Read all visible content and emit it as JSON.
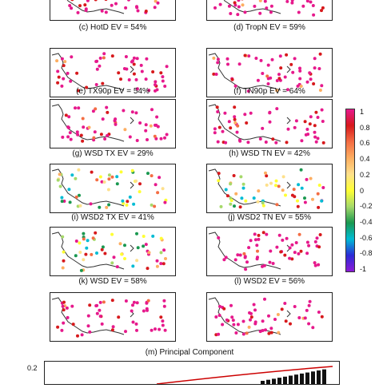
{
  "panels": [
    {
      "id": "top-left-partial"
    },
    {
      "id": "top-right-partial"
    },
    {
      "id": "c",
      "label": "(c) HotD  EV = 54%"
    },
    {
      "id": "d",
      "label": "(d) TropN  EV = 59%"
    },
    {
      "id": "e",
      "label": "(e) TX90p  EV = 54%"
    },
    {
      "id": "f",
      "label": "(f) TN90p  EV = 64%"
    },
    {
      "id": "g",
      "label": "(g) WSD TX  EV = 29%"
    },
    {
      "id": "h",
      "label": "(h) WSD TN  EV = 42%"
    },
    {
      "id": "i",
      "label": "(i) WSD2 TX  EV = 41%"
    },
    {
      "id": "j",
      "label": "(j) WSD2 TN  EV = 55%"
    },
    {
      "id": "k",
      "label": "(k) WSD     EV = 58%"
    },
    {
      "id": "l",
      "label": "(l) WSD2    EV = 56%"
    }
  ],
  "colorbar": {
    "ticks": [
      "1",
      "0.8",
      "0.6",
      "0.4",
      "0.2",
      "0",
      "-0.2",
      "-0.4",
      "-0.6",
      "-0.8",
      "-1"
    ],
    "colors": [
      "#e6198c",
      "#d7191c",
      "#f46d43",
      "#fdae61",
      "#fee08b",
      "#ffff33",
      "#a6d96a",
      "#1a9850",
      "#00bcd4",
      "#2b2bd6",
      "#8c1ad6"
    ]
  },
  "principal_component": {
    "title": "(m) Principal Component",
    "ytick": "0.2"
  },
  "chart_data": {
    "type": "scatter",
    "title": "",
    "colorbar_range": [
      -1,
      1
    ],
    "panel_evs_percent": {
      "HotD": 54,
      "TropN": 59,
      "TX90p": 54,
      "TN90p": 64,
      "WSD TX": 29,
      "WSD TN": 42,
      "WSD2 TX": 41,
      "WSD2 TN": 55,
      "WSD": 58,
      "WSD2": 56
    }
  }
}
